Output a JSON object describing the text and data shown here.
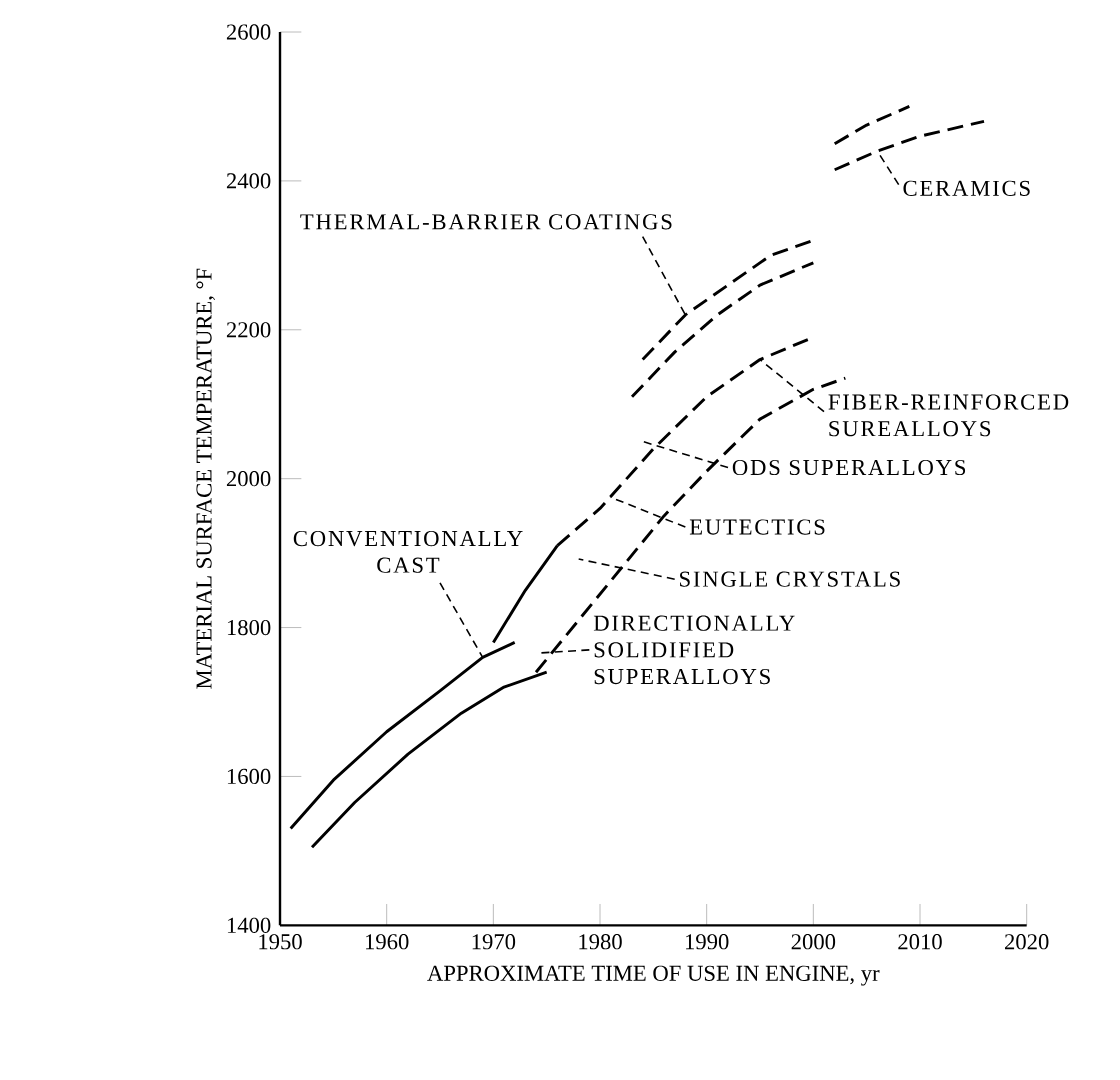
{
  "chart_data": {
    "type": "line",
    "xlabel": "APPROXIMATE TIME OF USE IN ENGINE, yr",
    "ylabel": "MATERIAL SURFACE TEMPERATURE, °F",
    "xlim": [
      1950,
      2020
    ],
    "ylim": [
      1400,
      2600
    ],
    "xticks": [
      1950,
      1960,
      1970,
      1980,
      1990,
      2000,
      2010,
      2020
    ],
    "yticks": [
      1400,
      1600,
      1800,
      2000,
      2200,
      2400,
      2600
    ],
    "marker": "none",
    "series": [
      {
        "color": "#000000",
        "line_style": "solid",
        "x": [
          1951,
          1955,
          1960,
          1965,
          1969,
          1972
        ],
        "values": [
          1530,
          1595,
          1660,
          1715,
          1760,
          1780
        ]
      },
      {
        "color": "#000000",
        "line_style": "solid",
        "x": [
          1953,
          1957,
          1962,
          1967,
          1971,
          1975
        ],
        "values": [
          1505,
          1565,
          1630,
          1685,
          1720,
          1740
        ]
      },
      {
        "color": "#000000",
        "line_style": "solid",
        "x": [
          1970,
          1973,
          1976
        ],
        "values": [
          1780,
          1850,
          1910
        ]
      },
      {
        "color": "#000000",
        "line_style": "dashed",
        "x": [
          1976,
          1980,
          1985,
          1990,
          1995,
          2000
        ],
        "values": [
          1910,
          1960,
          2040,
          2110,
          2160,
          2190
        ]
      },
      {
        "color": "#000000",
        "line_style": "dashed",
        "x": [
          1974,
          1978,
          1982,
          1986,
          1990,
          1995,
          2000,
          2003
        ],
        "values": [
          1740,
          1810,
          1880,
          1950,
          2010,
          2080,
          2120,
          2135
        ]
      },
      {
        "color": "#000000",
        "line_style": "dashed",
        "x": [
          1984,
          1988,
          1992,
          1996,
          2000
        ],
        "values": [
          2160,
          2220,
          2260,
          2300,
          2320
        ]
      },
      {
        "color": "#000000",
        "line_style": "dashed",
        "x": [
          1983,
          1987,
          1991,
          1995,
          2000
        ],
        "values": [
          2110,
          2170,
          2220,
          2260,
          2290
        ]
      },
      {
        "color": "#000000",
        "line_style": "dashed",
        "x": [
          2002,
          2005,
          2009
        ],
        "values": [
          2450,
          2475,
          2500
        ]
      },
      {
        "color": "#000000",
        "line_style": "dashed",
        "x": [
          2002,
          2006,
          2010,
          2016
        ],
        "values": [
          2415,
          2440,
          2460,
          2480
        ]
      }
    ],
    "annotations": [
      {
        "text": "CERAMICS",
        "x": 2006,
        "y": 2440
      },
      {
        "text": "THERMAL-BARRIER COATINGS",
        "x": 1988,
        "y": 2220
      },
      {
        "text": "FIBER-REINFORCED SUREALLOYS",
        "x": 1995,
        "y": 2160
      },
      "ODS SUPERALLOYS",
      "EUTECTICS",
      "SINGLE CRYSTALS",
      {
        "text": "CONVENTIONALLY CAST",
        "x": 1969,
        "y": 1760
      },
      "DIRECTIONALLY SOLIDIFIED SUPERALLOYS"
    ]
  }
}
